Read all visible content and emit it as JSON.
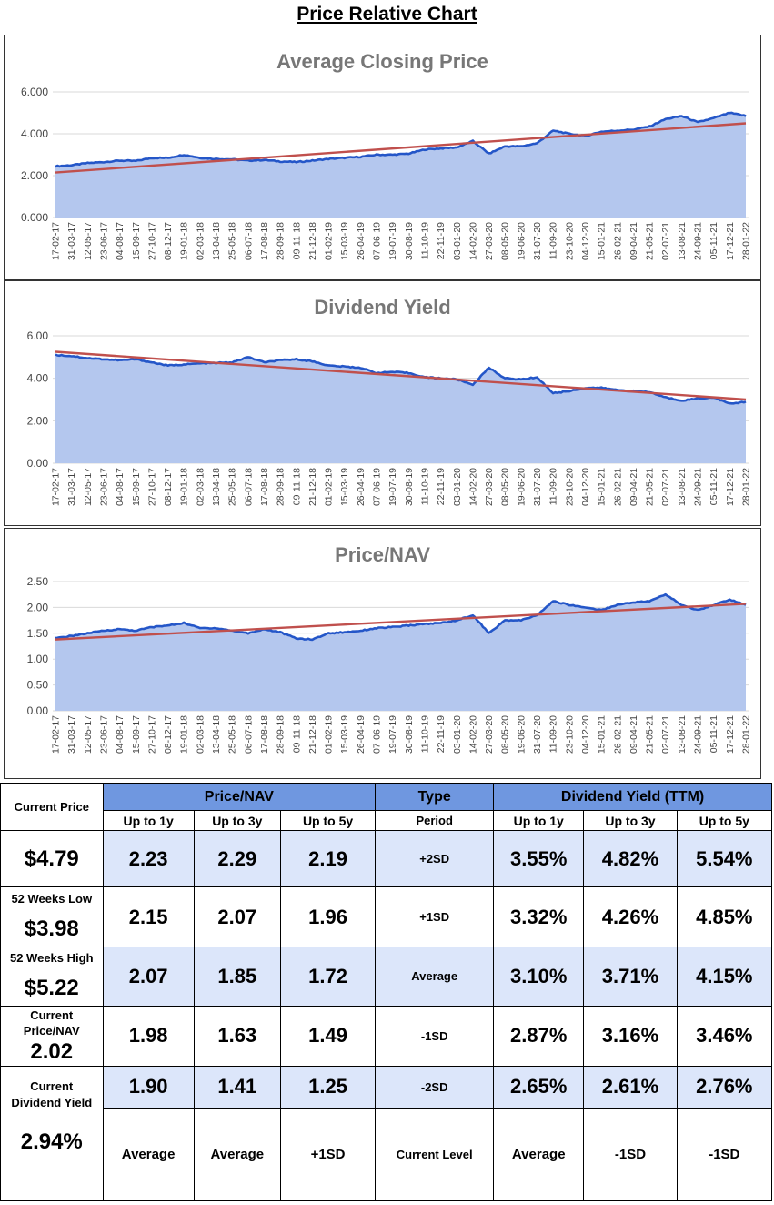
{
  "page_title": "Price Relative Chart",
  "chart_data": [
    {
      "type": "area",
      "title": "Average Closing Price",
      "ylim": [
        0,
        6
      ],
      "yticks": [
        "0.000",
        "2.000",
        "4.000",
        "6.000"
      ],
      "x_labels": [
        "17-02-17",
        "31-03-17",
        "12-05-17",
        "23-06-17",
        "04-08-17",
        "15-09-17",
        "27-10-17",
        "08-12-17",
        "19-01-18",
        "02-03-18",
        "13-04-18",
        "25-05-18",
        "06-07-18",
        "17-08-18",
        "28-09-18",
        "09-11-18",
        "21-12-18",
        "01-02-19",
        "15-03-19",
        "26-04-19",
        "07-06-19",
        "19-07-19",
        "30-08-19",
        "11-10-19",
        "22-11-19",
        "03-01-20",
        "14-02-20",
        "27-03-20",
        "08-05-20",
        "19-06-20",
        "31-07-20",
        "11-09-20",
        "23-10-20",
        "04-12-20",
        "15-01-21",
        "26-02-21",
        "09-04-21",
        "21-05-21",
        "02-07-21",
        "13-08-21",
        "24-09-21",
        "05-11-21",
        "17-12-21",
        "28-01-22"
      ],
      "series": [
        {
          "name": "Average Closing Price",
          "values": [
            2.45,
            2.5,
            2.6,
            2.65,
            2.72,
            2.7,
            2.85,
            2.85,
            3.0,
            2.85,
            2.8,
            2.78,
            2.72,
            2.75,
            2.68,
            2.65,
            2.72,
            2.8,
            2.85,
            2.9,
            3.0,
            3.0,
            3.05,
            3.25,
            3.3,
            3.35,
            3.65,
            3.05,
            3.4,
            3.4,
            3.55,
            4.15,
            4.0,
            3.9,
            4.1,
            4.15,
            4.2,
            4.35,
            4.7,
            4.85,
            4.55,
            4.75,
            5.0,
            4.85
          ]
        },
        {
          "name": "Trend",
          "values": [
            2.15,
            4.5
          ]
        }
      ]
    },
    {
      "type": "area",
      "title": "Dividend Yield",
      "ylim": [
        0,
        6
      ],
      "yticks": [
        "0.00",
        "2.00",
        "4.00",
        "6.00"
      ],
      "x_labels": [
        "17-02-17",
        "31-03-17",
        "12-05-17",
        "23-06-17",
        "04-08-17",
        "15-09-17",
        "27-10-17",
        "08-12-17",
        "19-01-18",
        "02-03-18",
        "13-04-18",
        "25-05-18",
        "06-07-18",
        "17-08-18",
        "28-09-18",
        "09-11-18",
        "21-12-18",
        "01-02-19",
        "15-03-19",
        "26-04-19",
        "07-06-19",
        "19-07-19",
        "30-08-19",
        "11-10-19",
        "22-11-19",
        "03-01-20",
        "14-02-20",
        "27-03-20",
        "08-05-20",
        "19-06-20",
        "31-07-20",
        "11-09-20",
        "23-10-20",
        "04-12-20",
        "15-01-21",
        "26-02-21",
        "09-04-21",
        "21-05-21",
        "02-07-21",
        "13-08-21",
        "24-09-21",
        "05-11-21",
        "17-12-21",
        "28-01-22"
      ],
      "series": [
        {
          "name": "Dividend Yield",
          "values": [
            5.1,
            5.05,
            4.95,
            4.9,
            4.85,
            4.9,
            4.75,
            4.6,
            4.65,
            4.7,
            4.72,
            4.75,
            5.0,
            4.75,
            4.85,
            4.9,
            4.8,
            4.6,
            4.55,
            4.5,
            4.25,
            4.3,
            4.25,
            4.05,
            4.0,
            3.95,
            3.7,
            4.5,
            4.0,
            3.95,
            4.05,
            3.3,
            3.4,
            3.55,
            3.55,
            3.45,
            3.4,
            3.35,
            3.1,
            2.95,
            3.05,
            3.1,
            2.8,
            2.9
          ]
        },
        {
          "name": "Trend",
          "values": [
            5.25,
            3.0
          ]
        }
      ]
    },
    {
      "type": "area",
      "title": "Price/NAV",
      "ylim": [
        0,
        2.5
      ],
      "yticks": [
        "0.00",
        "0.50",
        "1.00",
        "1.50",
        "2.00",
        "2.50"
      ],
      "x_labels": [
        "17-02-17",
        "31-03-17",
        "12-05-17",
        "23-06-17",
        "04-08-17",
        "15-09-17",
        "27-10-17",
        "08-12-17",
        "19-01-18",
        "02-03-18",
        "13-04-18",
        "25-05-18",
        "06-07-18",
        "17-08-18",
        "28-09-18",
        "09-11-18",
        "21-12-18",
        "01-02-19",
        "15-03-19",
        "26-04-19",
        "07-06-19",
        "19-07-19",
        "30-08-19",
        "11-10-19",
        "22-11-19",
        "03-01-20",
        "14-02-20",
        "27-03-20",
        "08-05-20",
        "19-06-20",
        "31-07-20",
        "11-09-20",
        "23-10-20",
        "04-12-20",
        "15-01-21",
        "26-02-21",
        "09-04-21",
        "21-05-21",
        "02-07-21",
        "13-08-21",
        "24-09-21",
        "05-11-21",
        "17-12-21",
        "28-01-22"
      ],
      "series": [
        {
          "name": "Price/NAV",
          "values": [
            1.4,
            1.45,
            1.5,
            1.55,
            1.58,
            1.55,
            1.62,
            1.65,
            1.7,
            1.6,
            1.6,
            1.55,
            1.5,
            1.58,
            1.52,
            1.4,
            1.38,
            1.5,
            1.52,
            1.55,
            1.6,
            1.62,
            1.65,
            1.68,
            1.7,
            1.75,
            1.85,
            1.5,
            1.75,
            1.75,
            1.85,
            2.12,
            2.05,
            2.0,
            1.95,
            2.05,
            2.1,
            2.12,
            2.25,
            2.05,
            1.95,
            2.05,
            2.15,
            2.05
          ]
        },
        {
          "name": "Trend",
          "values": [
            1.38,
            2.07
          ]
        }
      ]
    }
  ],
  "summary": {
    "current_price_label": "Current Price",
    "current_price_value": "$4.79",
    "low_label": "52 Weeks Low",
    "low_value": "$3.98",
    "high_label": "52 Weeks High",
    "high_value": "$5.22",
    "current_pnav_label": "Current Price/NAV",
    "current_pnav_value": "2.02",
    "current_dy_label": "Current Dividend Yield",
    "current_dy_value": "2.94%"
  },
  "table": {
    "pnav_header": "Price/NAV",
    "type_header": "Type",
    "dy_header": "Dividend Yield (TTM)",
    "periods": [
      "Up to 1y",
      "Up to 3y",
      "Up to 5y"
    ],
    "period_label": "Period",
    "rows": [
      {
        "type": "+2SD",
        "pnav": [
          "2.23",
          "2.29",
          "2.19"
        ],
        "dy": [
          "3.55%",
          "4.82%",
          "5.54%"
        ]
      },
      {
        "type": "+1SD",
        "pnav": [
          "2.15",
          "2.07",
          "1.96"
        ],
        "dy": [
          "3.32%",
          "4.26%",
          "4.85%"
        ]
      },
      {
        "type": "Average",
        "pnav": [
          "2.07",
          "1.85",
          "1.72"
        ],
        "dy": [
          "3.10%",
          "3.71%",
          "4.15%"
        ]
      },
      {
        "type": "-1SD",
        "pnav": [
          "1.98",
          "1.63",
          "1.49"
        ],
        "dy": [
          "2.87%",
          "3.16%",
          "3.46%"
        ]
      },
      {
        "type": "-2SD",
        "pnav": [
          "1.90",
          "1.41",
          "1.25"
        ],
        "dy": [
          "2.65%",
          "2.61%",
          "2.76%"
        ]
      }
    ],
    "current_level_label": "Current Level",
    "pnav_levels": [
      "Average",
      "Average",
      "+1SD"
    ],
    "dy_levels": [
      "Average",
      "-1SD",
      "-1SD"
    ]
  }
}
